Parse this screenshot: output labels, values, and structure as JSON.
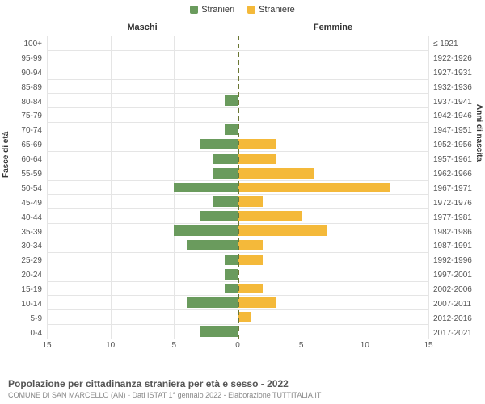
{
  "legend": {
    "male": {
      "label": "Stranieri",
      "color": "#6a9b5d"
    },
    "female": {
      "label": "Straniere",
      "color": "#f4b93a"
    }
  },
  "headers": {
    "male": "Maschi",
    "female": "Femmine"
  },
  "axis_titles": {
    "left": "Fasce di età",
    "right": "Anni di nascita"
  },
  "chart": {
    "type": "population-pyramid",
    "x_max": 15,
    "x_ticks": [
      15,
      10,
      5,
      0,
      5,
      10,
      15
    ],
    "background_color": "#ffffff",
    "grid_color": "#e5e5e5",
    "center_line_color": "#6b7734",
    "bar_colors": {
      "male": "#6a9b5d",
      "female": "#f4b93a"
    },
    "title_fontsize": 12,
    "label_fontsize": 10,
    "rows": [
      {
        "age": "100+",
        "birth": "≤ 1921",
        "m": 0,
        "f": 0
      },
      {
        "age": "95-99",
        "birth": "1922-1926",
        "m": 0,
        "f": 0
      },
      {
        "age": "90-94",
        "birth": "1927-1931",
        "m": 0,
        "f": 0
      },
      {
        "age": "85-89",
        "birth": "1932-1936",
        "m": 0,
        "f": 0
      },
      {
        "age": "80-84",
        "birth": "1937-1941",
        "m": 1,
        "f": 0
      },
      {
        "age": "75-79",
        "birth": "1942-1946",
        "m": 0,
        "f": 0
      },
      {
        "age": "70-74",
        "birth": "1947-1951",
        "m": 1,
        "f": 0
      },
      {
        "age": "65-69",
        "birth": "1952-1956",
        "m": 3,
        "f": 3
      },
      {
        "age": "60-64",
        "birth": "1957-1961",
        "m": 2,
        "f": 3
      },
      {
        "age": "55-59",
        "birth": "1962-1966",
        "m": 2,
        "f": 6
      },
      {
        "age": "50-54",
        "birth": "1967-1971",
        "m": 5,
        "f": 12
      },
      {
        "age": "45-49",
        "birth": "1972-1976",
        "m": 2,
        "f": 2
      },
      {
        "age": "40-44",
        "birth": "1977-1981",
        "m": 3,
        "f": 5
      },
      {
        "age": "35-39",
        "birth": "1982-1986",
        "m": 5,
        "f": 7
      },
      {
        "age": "30-34",
        "birth": "1987-1991",
        "m": 4,
        "f": 2
      },
      {
        "age": "25-29",
        "birth": "1992-1996",
        "m": 1,
        "f": 2
      },
      {
        "age": "20-24",
        "birth": "1997-2001",
        "m": 1,
        "f": 0
      },
      {
        "age": "15-19",
        "birth": "2002-2006",
        "m": 1,
        "f": 2
      },
      {
        "age": "10-14",
        "birth": "2007-2011",
        "m": 4,
        "f": 3
      },
      {
        "age": "5-9",
        "birth": "2012-2016",
        "m": 0,
        "f": 1
      },
      {
        "age": "0-4",
        "birth": "2017-2021",
        "m": 3,
        "f": 0
      }
    ]
  },
  "footer": {
    "title": "Popolazione per cittadinanza straniera per età e sesso - 2022",
    "subtitle": "COMUNE DI SAN MARCELLO (AN) - Dati ISTAT 1° gennaio 2022 - Elaborazione TUTTITALIA.IT"
  }
}
